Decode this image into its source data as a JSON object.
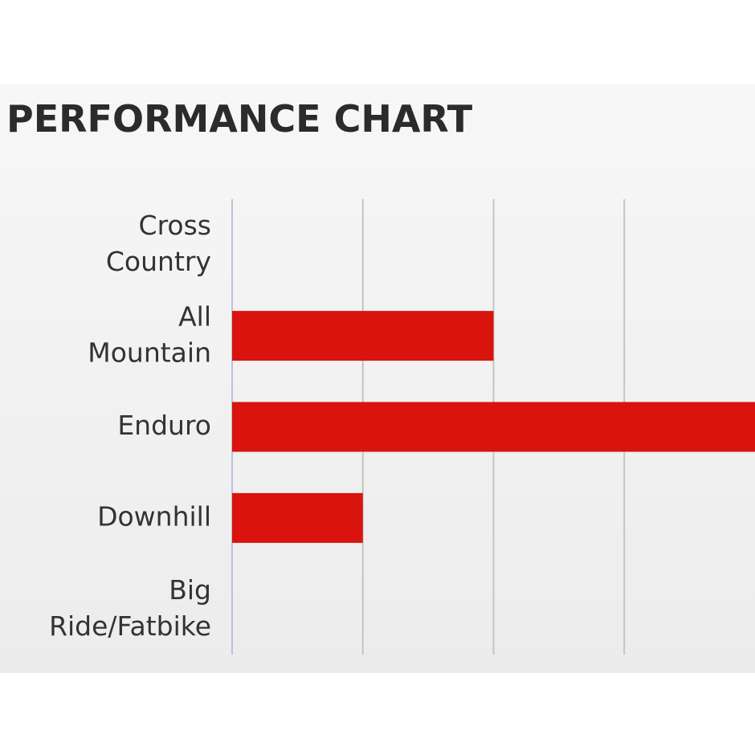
{
  "chart_data": {
    "type": "barh",
    "title": "PERFORMANCE CHART",
    "categories": [
      "Cross\nCountry",
      "All\nMountain",
      "Enduro",
      "Downhill",
      "Big\nRide/Fatbike"
    ],
    "values": [
      0,
      2,
      4,
      1,
      0
    ],
    "color": "#d9140e",
    "xlim": [
      0,
      4
    ],
    "xticks": [
      0,
      1,
      2,
      3
    ],
    "grid": true
  }
}
